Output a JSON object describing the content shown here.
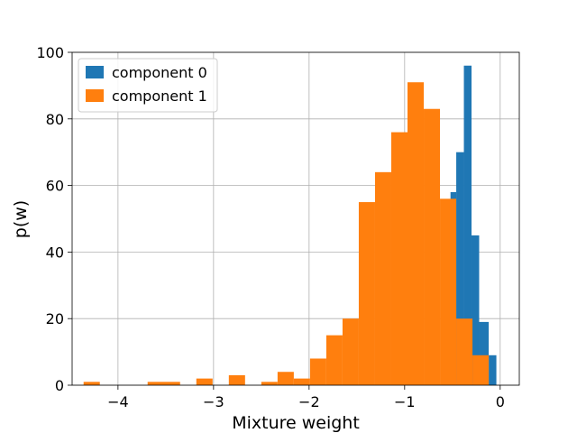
{
  "chart_data": {
    "type": "bar",
    "xlabel": "Mixture weight",
    "ylabel": "p(w)",
    "xlim": [
      -4.48,
      0.2
    ],
    "ylim": [
      0,
      100
    ],
    "xticks": [
      -4,
      -3,
      -2,
      -1,
      0
    ],
    "xtick_labels": [
      "−4",
      "−3",
      "−2",
      "−1",
      "0"
    ],
    "yticks": [
      0,
      20,
      40,
      60,
      80,
      100
    ],
    "ytick_labels": [
      "0",
      "20",
      "40",
      "60",
      "80",
      "100"
    ],
    "grid": true,
    "legend_position": "top-left",
    "series": [
      {
        "name": "component 0",
        "color": "#1f77b4",
        "bins": [
          {
            "x0": -0.52,
            "x1": -0.46,
            "count": 58
          },
          {
            "x0": -0.46,
            "x1": -0.38,
            "count": 70
          },
          {
            "x0": -0.38,
            "x1": -0.3,
            "count": 96
          },
          {
            "x0": -0.3,
            "x1": -0.22,
            "count": 45
          },
          {
            "x0": -0.22,
            "x1": -0.12,
            "count": 19
          },
          {
            "x0": -0.12,
            "x1": -0.04,
            "count": 9
          }
        ]
      },
      {
        "name": "component 1",
        "color": "#ff7f0e",
        "bins": [
          {
            "x0": -4.36,
            "x1": -4.19,
            "count": 1
          },
          {
            "x0": -3.69,
            "x1": -3.35,
            "count": 1
          },
          {
            "x0": -3.18,
            "x1": -3.01,
            "count": 2
          },
          {
            "x0": -2.84,
            "x1": -2.67,
            "count": 3
          },
          {
            "x0": -2.5,
            "x1": -2.33,
            "count": 1
          },
          {
            "x0": -2.33,
            "x1": -2.16,
            "count": 4
          },
          {
            "x0": -2.16,
            "x1": -1.99,
            "count": 2
          },
          {
            "x0": -1.99,
            "x1": -1.82,
            "count": 8
          },
          {
            "x0": -1.82,
            "x1": -1.65,
            "count": 15
          },
          {
            "x0": -1.65,
            "x1": -1.48,
            "count": 20
          },
          {
            "x0": -1.48,
            "x1": -1.31,
            "count": 55
          },
          {
            "x0": -1.31,
            "x1": -1.14,
            "count": 64
          },
          {
            "x0": -1.14,
            "x1": -0.97,
            "count": 76
          },
          {
            "x0": -0.97,
            "x1": -0.8,
            "count": 91
          },
          {
            "x0": -0.8,
            "x1": -0.63,
            "count": 83
          },
          {
            "x0": -0.63,
            "x1": -0.46,
            "count": 56
          },
          {
            "x0": -0.46,
            "x1": -0.29,
            "count": 20
          },
          {
            "x0": -0.29,
            "x1": -0.12,
            "count": 9
          }
        ]
      }
    ]
  }
}
